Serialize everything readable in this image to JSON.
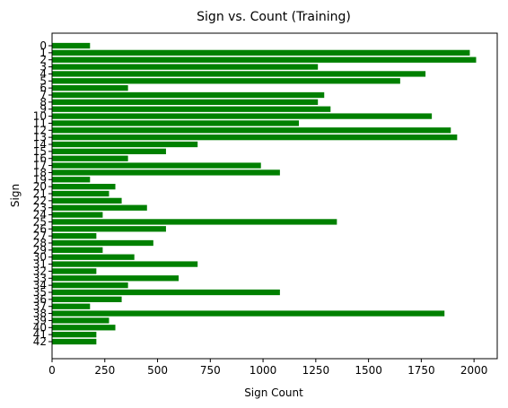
{
  "chart_data": {
    "type": "bar",
    "orientation": "horizontal",
    "title": "Sign vs. Count (Training)",
    "xlabel": "Sign Count",
    "ylabel": "Sign",
    "xlim": [
      0,
      2110
    ],
    "x_ticks": [
      0,
      250,
      500,
      750,
      1000,
      1250,
      1500,
      1750,
      2000
    ],
    "grid": false,
    "bar_color": "#008000",
    "categories": [
      "0",
      "1",
      "2",
      "3",
      "4",
      "5",
      "6",
      "7",
      "8",
      "9",
      "10",
      "11",
      "12",
      "13",
      "14",
      "15",
      "16",
      "17",
      "18",
      "19",
      "20",
      "21",
      "22",
      "23",
      "24",
      "25",
      "26",
      "27",
      "28",
      "29",
      "30",
      "31",
      "32",
      "33",
      "34",
      "35",
      "36",
      "37",
      "38",
      "39",
      "40",
      "41",
      "42"
    ],
    "values": [
      180,
      1980,
      2010,
      1260,
      1770,
      1650,
      360,
      1290,
      1260,
      1320,
      1800,
      1170,
      1890,
      1920,
      690,
      540,
      360,
      990,
      1080,
      180,
      300,
      270,
      330,
      450,
      240,
      1350,
      540,
      210,
      480,
      240,
      390,
      690,
      210,
      600,
      360,
      1080,
      330,
      180,
      1860,
      270,
      300,
      210,
      210
    ]
  }
}
